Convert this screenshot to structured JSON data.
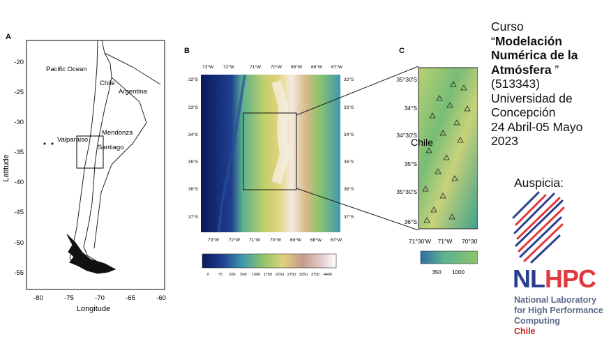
{
  "panel_a": {
    "letter": "A",
    "y_ticks": [
      "-20",
      "-25",
      "-30",
      "-35",
      "-40",
      "-45",
      "-50",
      "-55"
    ],
    "x_ticks": [
      "-80",
      "-75",
      "-70",
      "-65",
      "-60"
    ],
    "ylabel": "Latitude",
    "xlabel": "Longitude",
    "places": [
      "Pacific Ocean",
      "Chile",
      "Argentina",
      "Mendonza",
      "Valparaiso",
      "Santiago"
    ]
  },
  "panel_b": {
    "letter": "B",
    "top_ticks": [
      "73°W",
      "72°W",
      "71°W",
      "70°W",
      "69°W",
      "68°W",
      "67°W"
    ],
    "bottom_ticks": [
      "73°W",
      "72°W",
      "71°W",
      "70°W",
      "69°W",
      "68°W",
      "67°W"
    ],
    "left_ticks": [
      "32°S",
      "33°S",
      "34°S",
      "35°S",
      "36°S",
      "37°S"
    ],
    "right_ticks": [
      "32°S",
      "33°S",
      "34°S",
      "35°S",
      "36°S",
      "37°S"
    ],
    "colorbar_ticks": [
      "0",
      "75",
      "200",
      "500",
      "1000",
      "1750",
      "2250",
      "2750",
      "3250",
      "3750",
      "4400"
    ],
    "colors": [
      "#0a1a5a",
      "#1f3f8f",
      "#2d6ea8",
      "#3f98b0",
      "#5bb28f",
      "#8cc46c",
      "#c0cf6a",
      "#e0d27a",
      "#d9b98a",
      "#c79a8e",
      "#e6d0d0",
      "#ffffff"
    ]
  },
  "panel_c": {
    "letter": "C",
    "left_ticks": [
      "35°30'S",
      "34°S",
      "34°30'S",
      "35°S",
      "35°30'S",
      "36°S"
    ],
    "bottom_ticks": [
      "71°30'W",
      "71°W",
      "70°30'"
    ],
    "label": "Chile",
    "colorbar_ticks": [
      "350",
      "1000"
    ]
  },
  "course": {
    "line1": "Curso",
    "title_open": "“",
    "title": "Modelación Numérica de la Atmósfera",
    "title_close": " ”",
    "code": "(513343)",
    "university": "Universidad de Concepción",
    "dates": "24 Abril-05 Mayo 2023"
  },
  "sponsor": {
    "label": "Auspicia:",
    "logo_nl": "NL",
    "logo_hpc": "HPC",
    "logo_line1": "National Laboratory",
    "logo_line2": "for High Performance",
    "logo_line3": "Computing",
    "logo_line4": "Chile",
    "accent_blue": "#2b3f8f",
    "accent_red": "#e03a3e"
  }
}
